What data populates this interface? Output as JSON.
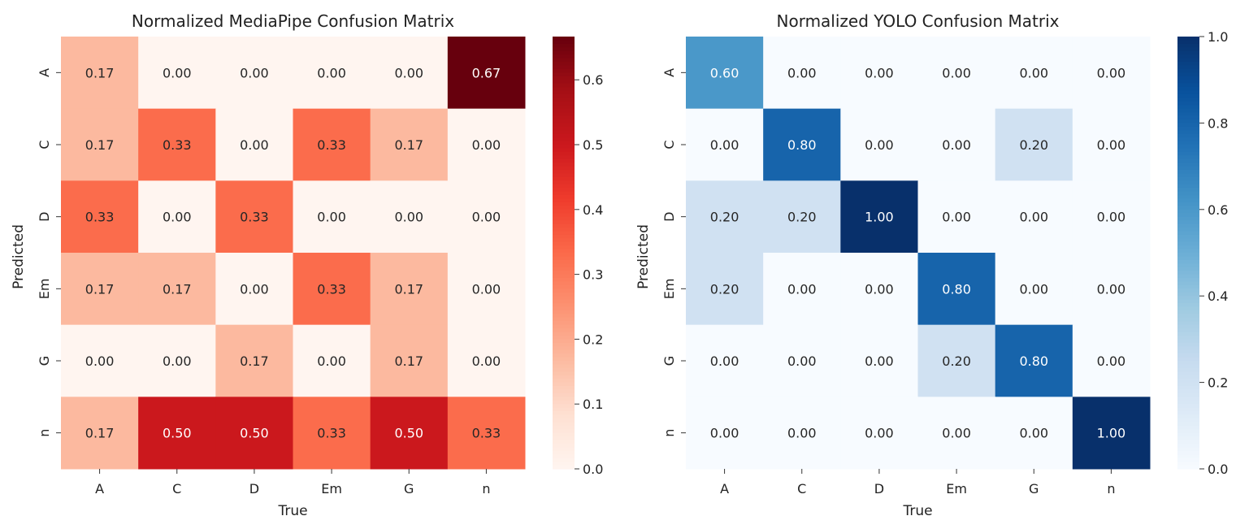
{
  "chart_data": [
    {
      "type": "heatmap",
      "title": "Normalized MediaPipe Confusion Matrix",
      "xlabel": "True",
      "ylabel": "Predicted",
      "x_categories": [
        "A",
        "C",
        "D",
        "Em",
        "G",
        "n"
      ],
      "y_categories": [
        "A",
        "C",
        "D",
        "Em",
        "G",
        "n"
      ],
      "values": [
        [
          0.17,
          0.0,
          0.0,
          0.0,
          0.0,
          0.67
        ],
        [
          0.17,
          0.33,
          0.0,
          0.33,
          0.17,
          0.0
        ],
        [
          0.33,
          0.0,
          0.33,
          0.0,
          0.0,
          0.0
        ],
        [
          0.17,
          0.17,
          0.0,
          0.33,
          0.17,
          0.0
        ],
        [
          0.0,
          0.0,
          0.17,
          0.0,
          0.17,
          0.0
        ],
        [
          0.17,
          0.5,
          0.5,
          0.33,
          0.5,
          0.33
        ]
      ],
      "value_format": "0.00",
      "colormap": "Reds",
      "colorbar_range": [
        0,
        0.6667
      ],
      "colorbar_ticks": [
        0.0,
        0.1,
        0.2,
        0.3,
        0.4,
        0.5,
        0.6
      ],
      "colorbar_tick_labels": [
        "0.0",
        "0.1",
        "0.2",
        "0.3",
        "0.4",
        "0.5",
        "0.6"
      ]
    },
    {
      "type": "heatmap",
      "title": "Normalized YOLO Confusion Matrix",
      "xlabel": "True",
      "ylabel": "Predicted",
      "x_categories": [
        "A",
        "C",
        "D",
        "Em",
        "G",
        "n"
      ],
      "y_categories": [
        "A",
        "C",
        "D",
        "Em",
        "G",
        "n"
      ],
      "values": [
        [
          0.6,
          0.0,
          0.0,
          0.0,
          0.0,
          0.0
        ],
        [
          0.0,
          0.8,
          0.0,
          0.0,
          0.2,
          0.0
        ],
        [
          0.2,
          0.2,
          1.0,
          0.0,
          0.0,
          0.0
        ],
        [
          0.2,
          0.0,
          0.0,
          0.8,
          0.0,
          0.0
        ],
        [
          0.0,
          0.0,
          0.0,
          0.2,
          0.8,
          0.0
        ],
        [
          0.0,
          0.0,
          0.0,
          0.0,
          0.0,
          1.0
        ]
      ],
      "value_format": "0.00",
      "colormap": "Blues",
      "colorbar_range": [
        0,
        1.0
      ],
      "colorbar_ticks": [
        0.0,
        0.2,
        0.4,
        0.6,
        0.8,
        1.0
      ],
      "colorbar_tick_labels": [
        "0.0",
        "0.2",
        "0.4",
        "0.6",
        "0.8",
        "1.0"
      ]
    }
  ]
}
